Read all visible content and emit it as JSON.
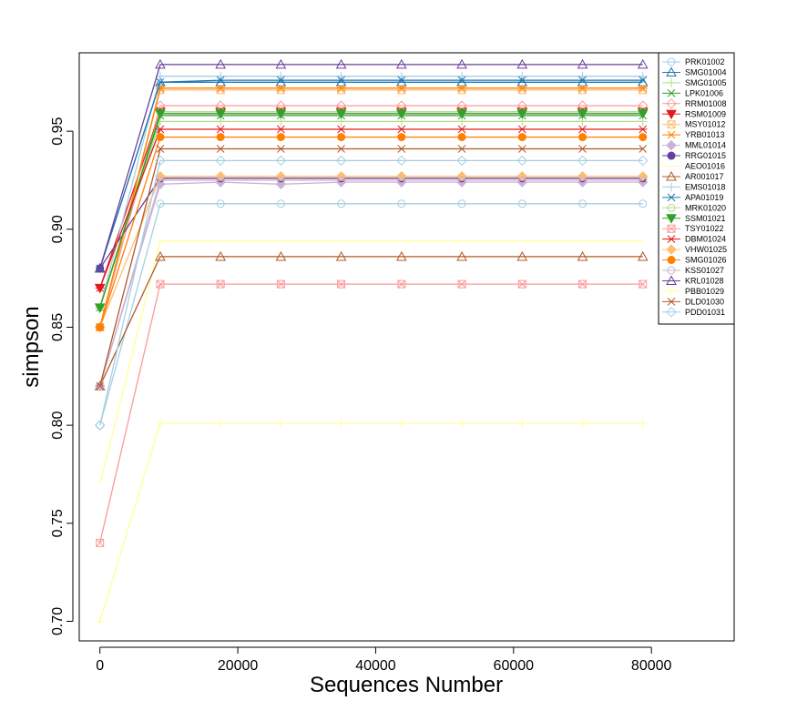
{
  "chart_data": {
    "type": "line",
    "xlabel": "Sequences Number",
    "ylabel": "simpson",
    "xlim": [
      -3000,
      92000
    ],
    "ylim": [
      0.69,
      0.99
    ],
    "xticks": [
      0,
      20000,
      40000,
      60000,
      80000
    ],
    "xtick_labels": [
      "0",
      "20000",
      "40000",
      "60000",
      "80000"
    ],
    "yticks": [
      0.7,
      0.75,
      0.8,
      0.85,
      0.9,
      0.95
    ],
    "ytick_labels": [
      "0.70",
      "0.75",
      "0.80",
      "0.85",
      "0.90",
      "0.95"
    ],
    "grid": false,
    "legend_position": "top-right",
    "x": [
      1,
      8750,
      17500,
      26250,
      35000,
      43750,
      52500,
      61250,
      70000,
      78750
    ],
    "series": [
      {
        "name": "PRK01002",
        "color": "#a6cee3",
        "marker": "circle",
        "values": [
          0.8,
          0.913,
          0.913,
          0.913,
          0.913,
          0.913,
          0.913,
          0.913,
          0.913,
          0.913
        ]
      },
      {
        "name": "SMG01004",
        "color": "#1f78b4",
        "marker": "triangle",
        "values": [
          0.88,
          0.975,
          0.975,
          0.975,
          0.975,
          0.975,
          0.975,
          0.975,
          0.975,
          0.975
        ]
      },
      {
        "name": "SMG01005",
        "color": "#b2df8a",
        "marker": "plus",
        "values": [
          0.86,
          0.955,
          0.955,
          0.955,
          0.955,
          0.955,
          0.955,
          0.955,
          0.955,
          0.955
        ]
      },
      {
        "name": "LPK01006",
        "color": "#33a02c",
        "marker": "cross",
        "values": [
          0.86,
          0.958,
          0.958,
          0.958,
          0.958,
          0.958,
          0.958,
          0.958,
          0.958,
          0.958
        ]
      },
      {
        "name": "RRM01008",
        "color": "#fb9a99",
        "marker": "diamond",
        "values": [
          0.85,
          0.963,
          0.963,
          0.963,
          0.963,
          0.963,
          0.963,
          0.963,
          0.963,
          0.963
        ]
      },
      {
        "name": "RSM01009",
        "color": "#e31a1c",
        "marker": "triangle-down",
        "values": [
          0.87,
          0.96,
          0.96,
          0.96,
          0.96,
          0.96,
          0.96,
          0.96,
          0.96,
          0.96
        ]
      },
      {
        "name": "MSY01012",
        "color": "#fdbf6f",
        "marker": "square-cross",
        "values": [
          0.85,
          0.971,
          0.971,
          0.971,
          0.971,
          0.971,
          0.971,
          0.971,
          0.971,
          0.971
        ]
      },
      {
        "name": "YRB01013",
        "color": "#ff7f00",
        "marker": "asterisk",
        "values": [
          0.85,
          0.972,
          0.972,
          0.972,
          0.972,
          0.972,
          0.972,
          0.972,
          0.972,
          0.972
        ]
      },
      {
        "name": "MML01014",
        "color": "#cab2d6",
        "marker": "diamond-filled",
        "values": [
          0.82,
          0.923,
          0.924,
          0.923,
          0.924,
          0.924,
          0.924,
          0.924,
          0.924,
          0.924
        ]
      },
      {
        "name": "RRG01015",
        "color": "#6a3d9a",
        "marker": "circle-filled",
        "values": [
          0.88,
          0.926,
          0.926,
          0.926,
          0.926,
          0.926,
          0.926,
          0.926,
          0.926,
          0.926
        ]
      },
      {
        "name": "AEO01016",
        "color": "#ffff99",
        "marker": "none",
        "values": [
          0.77,
          0.894,
          0.894,
          0.894,
          0.894,
          0.894,
          0.894,
          0.894,
          0.894,
          0.894
        ]
      },
      {
        "name": "AR001017",
        "color": "#b15928",
        "marker": "triangle",
        "values": [
          0.82,
          0.886,
          0.886,
          0.886,
          0.886,
          0.886,
          0.886,
          0.886,
          0.886,
          0.886
        ]
      },
      {
        "name": "EMS01018",
        "color": "#a6cee3",
        "marker": "plus",
        "values": [
          0.86,
          0.978,
          0.978,
          0.978,
          0.978,
          0.978,
          0.978,
          0.978,
          0.978,
          0.978
        ]
      },
      {
        "name": "APA01019",
        "color": "#1f78b4",
        "marker": "cross",
        "values": [
          0.88,
          0.975,
          0.976,
          0.976,
          0.976,
          0.976,
          0.976,
          0.976,
          0.976,
          0.976
        ]
      },
      {
        "name": "MRK01020",
        "color": "#b2df8a",
        "marker": "circle",
        "values": [
          0.86,
          0.96,
          0.96,
          0.96,
          0.96,
          0.96,
          0.96,
          0.96,
          0.96,
          0.96
        ]
      },
      {
        "name": "SSM01021",
        "color": "#33a02c",
        "marker": "triangle-down",
        "values": [
          0.86,
          0.959,
          0.959,
          0.959,
          0.959,
          0.959,
          0.959,
          0.959,
          0.959,
          0.959
        ]
      },
      {
        "name": "TSY01022",
        "color": "#fb9a99",
        "marker": "square-cross",
        "values": [
          0.74,
          0.872,
          0.872,
          0.872,
          0.872,
          0.872,
          0.872,
          0.872,
          0.872,
          0.872
        ]
      },
      {
        "name": "DBM01024",
        "color": "#e31a1c",
        "marker": "asterisk",
        "values": [
          0.87,
          0.951,
          0.951,
          0.951,
          0.951,
          0.951,
          0.951,
          0.951,
          0.951,
          0.951
        ]
      },
      {
        "name": "VHW01025",
        "color": "#fdbf6f",
        "marker": "diamond-filled",
        "values": [
          0.85,
          0.927,
          0.927,
          0.927,
          0.927,
          0.927,
          0.927,
          0.927,
          0.927,
          0.927
        ]
      },
      {
        "name": "SMG01026",
        "color": "#ff7f00",
        "marker": "circle-filled",
        "values": [
          0.85,
          0.947,
          0.947,
          0.947,
          0.947,
          0.947,
          0.947,
          0.947,
          0.947,
          0.947
        ]
      },
      {
        "name": "KSS01027",
        "color": "#cab2d6",
        "marker": "circle",
        "values": [
          0.82,
          0.925,
          0.925,
          0.925,
          0.925,
          0.925,
          0.925,
          0.925,
          0.925,
          0.925
        ]
      },
      {
        "name": "KRL01028",
        "color": "#6a3d9a",
        "marker": "triangle",
        "values": [
          0.88,
          0.984,
          0.984,
          0.984,
          0.984,
          0.984,
          0.984,
          0.984,
          0.984,
          0.984
        ]
      },
      {
        "name": "PBB01029",
        "color": "#ffff99",
        "marker": "plus",
        "values": [
          0.7,
          0.801,
          0.801,
          0.801,
          0.801,
          0.801,
          0.801,
          0.801,
          0.801,
          0.801
        ]
      },
      {
        "name": "DLD01030",
        "color": "#b15928",
        "marker": "cross",
        "values": [
          0.82,
          0.941,
          0.941,
          0.941,
          0.941,
          0.941,
          0.941,
          0.941,
          0.941,
          0.941
        ]
      },
      {
        "name": "PDD01031",
        "color": "#a6cee3",
        "marker": "diamond",
        "values": [
          0.8,
          0.935,
          0.935,
          0.935,
          0.935,
          0.935,
          0.935,
          0.935,
          0.935,
          0.935
        ]
      }
    ]
  }
}
